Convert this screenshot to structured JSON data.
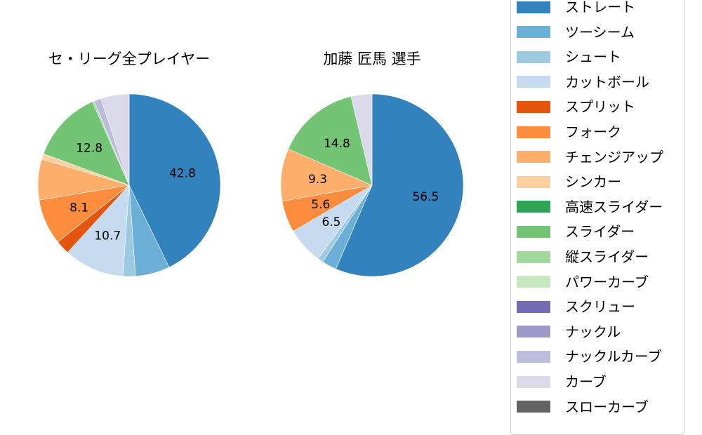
{
  "chart_data": [
    {
      "type": "pie",
      "title": "セ・リーグ全プレイヤー",
      "start_angle": 90,
      "direction": "clockwise",
      "categories": [
        "ストレート",
        "ツーシーム",
        "シュート",
        "カットボール",
        "スプリット",
        "フォーク",
        "チェンジアップ",
        "シンカー",
        "スライダー",
        "縦スライダー",
        "ナックルカーブ",
        "カーブ"
      ],
      "values": [
        42.8,
        6.1,
        2.2,
        10.7,
        2.5,
        8.1,
        7.2,
        1.0,
        12.8,
        0.3,
        1.3,
        5.0
      ],
      "colors": [
        "#3182bd",
        "#6baed6",
        "#9ecae1",
        "#c6dbef",
        "#e6550d",
        "#fd8d3c",
        "#fdae6b",
        "#fdd0a2",
        "#74c476",
        "#a1d99b",
        "#bcbddc",
        "#dadaeb"
      ],
      "labels_shown": [
        "42.8",
        "",
        "",
        "10.7",
        "",
        "8.1",
        "",
        "",
        "12.8",
        "",
        "",
        ""
      ]
    },
    {
      "type": "pie",
      "title": "加藤 匠馬  選手",
      "start_angle": 90,
      "direction": "clockwise",
      "categories": [
        "ストレート",
        "ツーシーム",
        "シュート",
        "カットボール",
        "フォーク",
        "チェンジアップ",
        "スライダー",
        "カーブ"
      ],
      "values": [
        56.5,
        2.6,
        1.0,
        6.5,
        5.6,
        9.3,
        14.8,
        3.7
      ],
      "colors": [
        "#3182bd",
        "#6baed6",
        "#9ecae1",
        "#c6dbef",
        "#fd8d3c",
        "#fdae6b",
        "#74c476",
        "#dadaeb"
      ],
      "labels_shown": [
        "56.5",
        "",
        "",
        "6.5",
        "5.6",
        "9.3",
        "14.8",
        ""
      ]
    }
  ],
  "legend": {
    "position": "right",
    "items": [
      {
        "label": "ストレート",
        "color": "#3182bd"
      },
      {
        "label": "ツーシーム",
        "color": "#6baed6"
      },
      {
        "label": "シュート",
        "color": "#9ecae1"
      },
      {
        "label": "カットボール",
        "color": "#c6dbef"
      },
      {
        "label": "スプリット",
        "color": "#e6550d"
      },
      {
        "label": "フォーク",
        "color": "#fd8d3c"
      },
      {
        "label": "チェンジアップ",
        "color": "#fdae6b"
      },
      {
        "label": "シンカー",
        "color": "#fdd0a2"
      },
      {
        "label": "高速スライダー",
        "color": "#31a354"
      },
      {
        "label": "スライダー",
        "color": "#74c476"
      },
      {
        "label": "縦スライダー",
        "color": "#a1d99b"
      },
      {
        "label": "パワーカーブ",
        "color": "#c7e9c0"
      },
      {
        "label": "スクリュー",
        "color": "#756bb1"
      },
      {
        "label": "ナックル",
        "color": "#9e9ac8"
      },
      {
        "label": "ナックルカーブ",
        "color": "#bcbddc"
      },
      {
        "label": "カーブ",
        "color": "#dadaeb"
      },
      {
        "label": "スローカーブ",
        "color": "#636363"
      }
    ]
  }
}
